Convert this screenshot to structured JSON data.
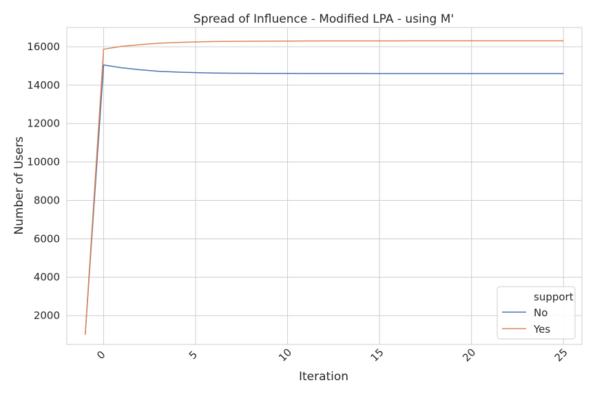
{
  "chart_data": {
    "type": "line",
    "title": "Spread of Influence - Modified LPA - using M'",
    "xlabel": "Iteration",
    "ylabel": "Number of Users",
    "xlim": [
      -2,
      26
    ],
    "ylim": [
      500,
      17000
    ],
    "xticks": [
      0,
      5,
      10,
      15,
      20,
      25
    ],
    "yticks": [
      2000,
      4000,
      6000,
      8000,
      10000,
      12000,
      14000,
      16000
    ],
    "grid": true,
    "legend": {
      "title": "support",
      "placement": "lower-right"
    },
    "x": [
      -1,
      0,
      1,
      2,
      3,
      4,
      5,
      6,
      7,
      8,
      9,
      10,
      11,
      12,
      13,
      14,
      15,
      16,
      17,
      18,
      19,
      20,
      21,
      22,
      23,
      24,
      25
    ],
    "series": [
      {
        "name": "No",
        "color": "#4c72b0",
        "values": [
          1000,
          15050,
          14900,
          14800,
          14720,
          14680,
          14650,
          14630,
          14620,
          14615,
          14612,
          14610,
          14608,
          14607,
          14606,
          14605,
          14604,
          14604,
          14603,
          14603,
          14603,
          14602,
          14602,
          14602,
          14602,
          14602,
          14602
        ]
      },
      {
        "name": "Yes",
        "color": "#dd8452",
        "values": [
          1000,
          15870,
          16020,
          16110,
          16180,
          16220,
          16250,
          16270,
          16280,
          16285,
          16290,
          16295,
          16298,
          16300,
          16302,
          16303,
          16304,
          16304,
          16305,
          16305,
          16305,
          16305,
          16305,
          16305,
          16305,
          16305,
          16305
        ]
      }
    ]
  }
}
